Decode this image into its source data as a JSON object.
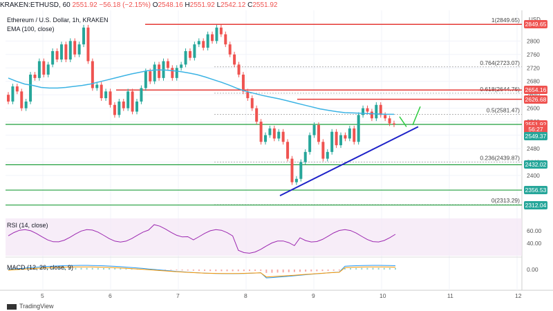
{
  "header": {
    "symbol": "KRAKEN:ETHUSD, 60",
    "last": "2551.92",
    "change": "−56.18 (−2.15%)",
    "o_label": "O",
    "o": "2548.16",
    "h_label": "H",
    "h": "2551.92",
    "l_label": "L",
    "l": "2542.12",
    "c_label": "C",
    "c": "2551.92"
  },
  "legend": {
    "title": "Ethereum / U.S. Dollar, 1h, KRAKEN",
    "ema": "EMA (100, close)",
    "rsi": "RSI (14, close)",
    "macd": "MACD (12, 26, close, 9)"
  },
  "currency": "USD",
  "footer": {
    "brand": "TradingView"
  },
  "colors": {
    "up": "#26a69a",
    "down": "#ef5350",
    "ema": "#3bb3e4",
    "trend": "#1e22c8",
    "support": "#1e9e3a",
    "resistance": "#e53935",
    "rsi": "#9c27b0"
  },
  "chart_data": {
    "type": "candlestick",
    "x_ticks": [
      "5",
      "6",
      "7",
      "8",
      "9",
      "10",
      "11",
      "12"
    ],
    "y_ticks": [
      "2400",
      "2440",
      "2480",
      "2520",
      "2560",
      "2600",
      "2640",
      "2680",
      "2720",
      "2760",
      "2800"
    ],
    "ylim": [
      2295,
      2885
    ],
    "candles": [
      [
        2640,
        2620
      ],
      [
        2620,
        2665
      ],
      [
        2665,
        2650
      ],
      [
        2650,
        2600
      ],
      [
        2600,
        2620
      ],
      [
        2620,
        2700
      ],
      [
        2700,
        2690
      ],
      [
        2690,
        2740
      ],
      [
        2740,
        2700
      ],
      [
        2700,
        2730
      ],
      [
        2730,
        2770
      ],
      [
        2770,
        2745
      ],
      [
        2745,
        2790
      ],
      [
        2790,
        2745
      ],
      [
        2745,
        2800
      ],
      [
        2800,
        2760
      ],
      [
        2760,
        2790
      ],
      [
        2790,
        2840
      ],
      [
        2840,
        2740
      ],
      [
        2740,
        2660
      ],
      [
        2660,
        2670
      ],
      [
        2670,
        2630
      ],
      [
        2630,
        2650
      ],
      [
        2650,
        2610
      ],
      [
        2610,
        2580
      ],
      [
        2580,
        2620
      ],
      [
        2620,
        2600
      ],
      [
        2600,
        2650
      ],
      [
        2650,
        2590
      ],
      [
        2590,
        2620
      ],
      [
        2620,
        2660
      ],
      [
        2660,
        2710
      ],
      [
        2710,
        2680
      ],
      [
        2680,
        2730
      ],
      [
        2730,
        2690
      ],
      [
        2690,
        2740
      ],
      [
        2740,
        2720
      ],
      [
        2720,
        2690
      ],
      [
        2690,
        2720
      ],
      [
        2720,
        2730
      ],
      [
        2730,
        2770
      ],
      [
        2770,
        2750
      ],
      [
        2750,
        2790
      ],
      [
        2790,
        2800
      ],
      [
        2800,
        2780
      ],
      [
        2780,
        2820
      ],
      [
        2820,
        2800
      ],
      [
        2800,
        2840
      ],
      [
        2840,
        2820
      ],
      [
        2820,
        2790
      ],
      [
        2790,
        2760
      ],
      [
        2760,
        2730
      ],
      [
        2730,
        2700
      ],
      [
        2700,
        2650
      ],
      [
        2650,
        2630
      ],
      [
        2630,
        2600
      ],
      [
        2600,
        2560
      ],
      [
        2560,
        2500
      ],
      [
        2500,
        2520
      ],
      [
        2520,
        2540
      ],
      [
        2540,
        2510
      ],
      [
        2510,
        2530
      ],
      [
        2530,
        2500
      ],
      [
        2500,
        2450
      ],
      [
        2450,
        2380
      ],
      [
        2380,
        2390
      ],
      [
        2390,
        2440
      ],
      [
        2440,
        2470
      ],
      [
        2470,
        2520
      ],
      [
        2520,
        2550
      ],
      [
        2550,
        2500
      ],
      [
        2500,
        2450
      ],
      [
        2450,
        2470
      ],
      [
        2470,
        2530
      ],
      [
        2530,
        2490
      ],
      [
        2490,
        2520
      ],
      [
        2520,
        2510
      ],
      [
        2510,
        2540
      ],
      [
        2540,
        2500
      ],
      [
        2500,
        2580
      ],
      [
        2580,
        2600
      ],
      [
        2600,
        2590
      ],
      [
        2590,
        2570
      ],
      [
        2570,
        2610
      ],
      [
        2610,
        2580
      ],
      [
        2580,
        2570
      ],
      [
        2570,
        2555
      ],
      [
        2555,
        2552
      ]
    ],
    "ema": [
      2690,
      2680,
      2672,
      2668,
      2662,
      2660,
      2660,
      2662,
      2665,
      2668,
      2672,
      2678,
      2684,
      2690,
      2696,
      2702,
      2707,
      2712,
      2714,
      2714,
      2712,
      2709,
      2705,
      2700,
      2693,
      2685,
      2677,
      2668,
      2658,
      2650,
      2644,
      2638,
      2633,
      2628,
      2622,
      2616,
      2610,
      2604,
      2598,
      2594,
      2590,
      2587,
      2586,
      2585,
      2584,
      2583,
      2582,
      2582
    ],
    "fib_levels": [
      {
        "ratio": "1",
        "value": 2849.65
      },
      {
        "ratio": "0.764",
        "value": 2723.07
      },
      {
        "ratio": "0.618",
        "value": 2644.76
      },
      {
        "ratio": "0.5",
        "value": 2581.47
      },
      {
        "ratio": "0.236",
        "value": 2439.87
      },
      {
        "ratio": "0",
        "value": 2313.29
      }
    ],
    "price_tags": [
      {
        "label": "2849.65",
        "value": 2849.65,
        "color": "#ef5350"
      },
      {
        "label": "2654.16",
        "value": 2654.16,
        "color": "#ef5350"
      },
      {
        "label": "2626.68",
        "value": 2626.68,
        "color": "#ef5350"
      },
      {
        "label": "2551.92",
        "value": 2551.92,
        "color": "#ef5350"
      },
      {
        "label": "56:27",
        "value": 2538,
        "color": "#ef5350"
      },
      {
        "label": "2549.37",
        "value": 2516,
        "color": "#26a69a"
      },
      {
        "label": "2432.02",
        "value": 2432.02,
        "color": "#26a69a"
      },
      {
        "label": "2356.53",
        "value": 2356.53,
        "color": "#26a69a"
      },
      {
        "label": "2312.04",
        "value": 2312.04,
        "color": "#26a69a"
      }
    ],
    "rsi_ticks": [
      "60.00",
      "40.00"
    ],
    "macd_ticks": [
      "0.00"
    ]
  }
}
